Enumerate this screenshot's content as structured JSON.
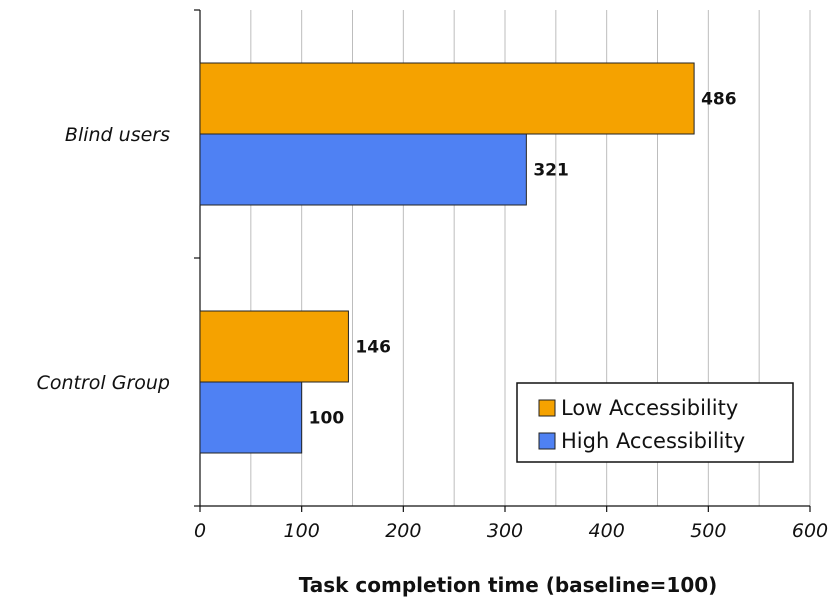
{
  "chart_data": {
    "type": "bar",
    "orientation": "horizontal",
    "title": "",
    "xlabel": "Task completion time (baseline=100)",
    "ylabel": "",
    "categories": [
      "Blind users",
      "Control Group"
    ],
    "series": [
      {
        "name": "Low Accessibility",
        "values": [
          486,
          146
        ],
        "color": "#f5a200"
      },
      {
        "name": "High Accessibility",
        "values": [
          321,
          100
        ],
        "color": "#4f81f3"
      }
    ],
    "xlim": [
      0,
      600
    ],
    "xticks": [
      0,
      100,
      200,
      300,
      400,
      500,
      600
    ],
    "minor_gridlines_every": 50,
    "grid": true,
    "legend_position": "bottom-right"
  }
}
